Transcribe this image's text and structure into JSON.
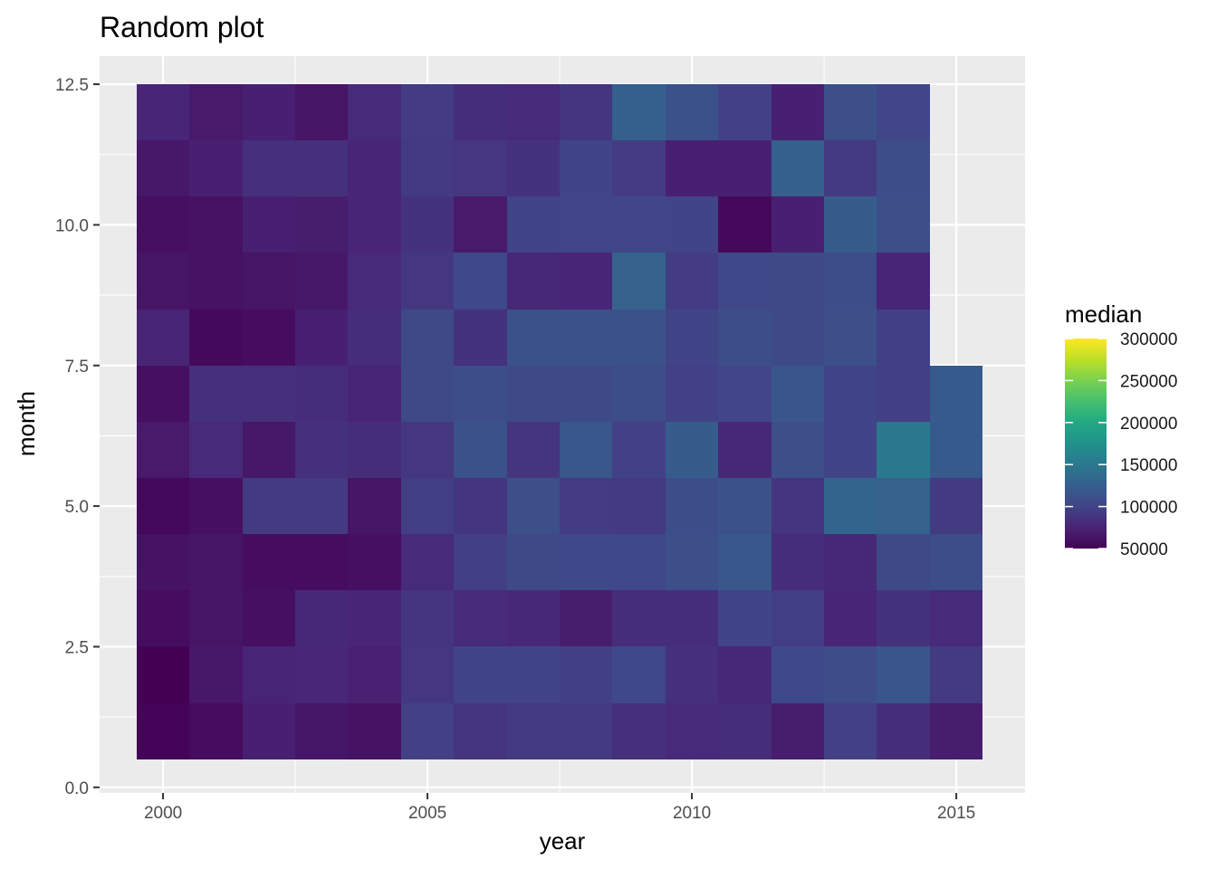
{
  "chart_data": {
    "type": "heatmap",
    "title": "Random plot",
    "xlabel": "year",
    "ylabel": "month",
    "legend_title": "median",
    "legend_position": "right",
    "colormap": "viridis",
    "grid": true,
    "xlim": [
      1998.8,
      2016.3
    ],
    "ylim": [
      -0.1,
      13.0
    ],
    "x_ticks": [
      2000,
      2005,
      2010,
      2015
    ],
    "x_tick_labels": [
      "2000",
      "2005",
      "2010",
      "2015"
    ],
    "y_ticks": [
      0,
      2.5,
      5,
      7.5,
      10,
      12.5
    ],
    "y_tick_labels": [
      "0.0",
      "2.5",
      "5.0",
      "7.5",
      "10.0",
      "12.5"
    ],
    "color_range": [
      50000,
      300000
    ],
    "legend_ticks": [
      50000,
      100000,
      150000,
      200000,
      250000,
      300000
    ],
    "legend_labels": [
      "50000",
      "100000",
      "150000",
      "200000",
      "250000",
      "300000"
    ],
    "x": [
      2000,
      2001,
      2002,
      2003,
      2004,
      2005,
      2006,
      2007,
      2008,
      2009,
      2010,
      2011,
      2012,
      2013,
      2014,
      2015
    ],
    "y": [
      1,
      2,
      3,
      4,
      5,
      6,
      7,
      8,
      9,
      10,
      11,
      12
    ],
    "values": [
      [
        52000,
        58000,
        72000,
        65000,
        62000,
        98000,
        88000,
        92000,
        92000,
        84000,
        80000,
        82000,
        70000,
        98000,
        82000,
        70000
      ],
      [
        50000,
        66000,
        75000,
        77000,
        73000,
        90000,
        100000,
        100000,
        97000,
        104000,
        84000,
        78000,
        104000,
        107000,
        116000,
        92000
      ],
      [
        58000,
        64000,
        60000,
        78000,
        76000,
        88000,
        80000,
        78000,
        70000,
        82000,
        82000,
        100000,
        95000,
        76000,
        86000,
        80000
      ],
      [
        62000,
        64000,
        58000,
        58000,
        60000,
        80000,
        97000,
        106000,
        104000,
        104000,
        110000,
        118000,
        82000,
        78000,
        106000,
        108000
      ],
      [
        56000,
        60000,
        92000,
        92000,
        64000,
        95000,
        88000,
        110000,
        94000,
        92000,
        108000,
        112000,
        88000,
        130000,
        128000,
        92000
      ],
      [
        68000,
        80000,
        66000,
        84000,
        82000,
        90000,
        112000,
        88000,
        118000,
        98000,
        122000,
        78000,
        110000,
        100000,
        150000,
        120000
      ],
      [
        60000,
        84000,
        84000,
        82000,
        75000,
        106000,
        108000,
        106000,
        106000,
        108000,
        98000,
        102000,
        116000,
        100000,
        96000,
        120000
      ],
      [
        75000,
        56000,
        58000,
        72000,
        82000,
        106000,
        86000,
        112000,
        112000,
        112000,
        100000,
        108000,
        106000,
        110000,
        96000,
        null
      ],
      [
        64000,
        62000,
        64000,
        66000,
        80000,
        90000,
        104000,
        78000,
        76000,
        128000,
        94000,
        104000,
        106000,
        108000,
        76000,
        null
      ],
      [
        60000,
        62000,
        72000,
        70000,
        76000,
        86000,
        68000,
        100000,
        102000,
        102000,
        100000,
        55000,
        72000,
        122000,
        110000,
        null
      ],
      [
        66000,
        72000,
        84000,
        84000,
        76000,
        92000,
        90000,
        86000,
        100000,
        94000,
        72000,
        72000,
        125000,
        92000,
        108000,
        null
      ],
      [
        76000,
        68000,
        72000,
        64000,
        80000,
        94000,
        82000,
        80000,
        88000,
        126000,
        112000,
        98000,
        72000,
        110000,
        102000,
        null
      ]
    ]
  }
}
